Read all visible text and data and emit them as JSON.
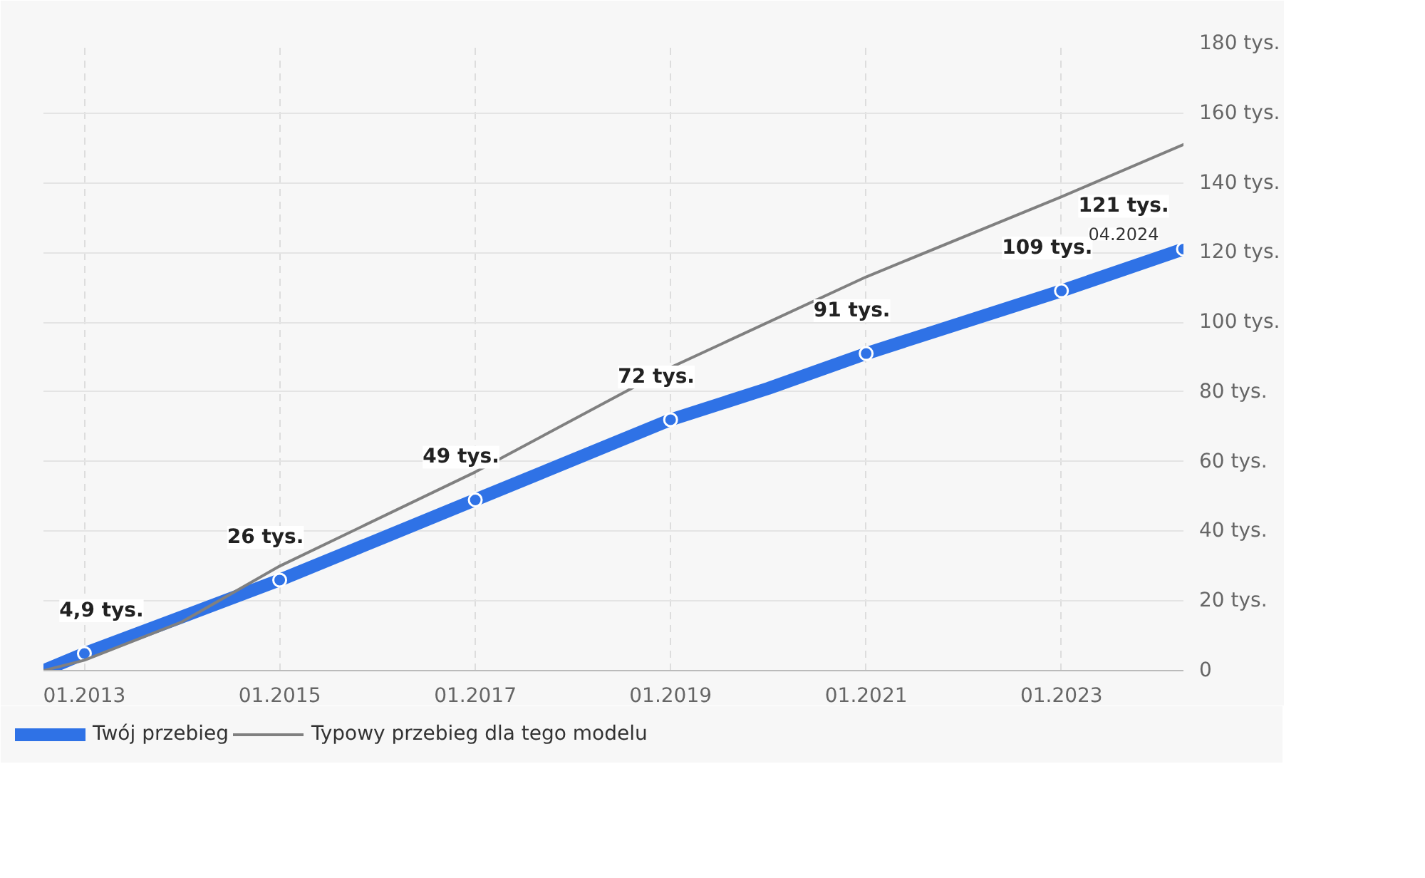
{
  "chart_data": {
    "type": "line",
    "xlim": [
      "2012-08",
      "2024-04"
    ],
    "xticks": [
      {
        "value": "2013-01",
        "label": "01.2013"
      },
      {
        "value": "2015-01",
        "label": "01.2015"
      },
      {
        "value": "2017-01",
        "label": "01.2017"
      },
      {
        "value": "2019-01",
        "label": "01.2019"
      },
      {
        "value": "2021-01",
        "label": "01.2021"
      },
      {
        "value": "2023-01",
        "label": "01.2023"
      }
    ],
    "ylim": [
      0,
      180
    ],
    "yticks": [
      {
        "value": 0,
        "label": "0"
      },
      {
        "value": 20,
        "label": "20 tys."
      },
      {
        "value": 40,
        "label": "40 tys."
      },
      {
        "value": 60,
        "label": "60 tys."
      },
      {
        "value": 80,
        "label": "80 tys."
      },
      {
        "value": 100,
        "label": "100 tys."
      },
      {
        "value": 120,
        "label": "120 tys."
      },
      {
        "value": 140,
        "label": "140 tys."
      },
      {
        "value": 160,
        "label": "160 tys."
      },
      {
        "value": 180,
        "label": "180 tys."
      }
    ],
    "grid": true,
    "legend": "bottom",
    "marker": "circle",
    "line_style": "solid",
    "series": [
      {
        "name": "Twój przebieg",
        "color": "#2f72e6",
        "x": [
          "2012-08",
          "2013-01",
          "2015-01",
          "2017-01",
          "2019-01",
          "2020-01",
          "2021-01",
          "2023-01",
          "2024-04"
        ],
        "values": [
          0,
          4.9,
          26,
          49,
          72,
          81,
          91,
          109,
          121
        ],
        "value_labels": [
          null,
          "4,9 tys.",
          "26 tys.",
          "49 tys.",
          "72 tys.",
          null,
          "91 tys.",
          "109 tys.",
          "121 tys."
        ]
      },
      {
        "name": "Typowy przebieg dla tego modelu",
        "color": "#808080",
        "type": "line",
        "marker": "none",
        "x": [
          "2012-08",
          "2013-01",
          "2014-01",
          "2015-01",
          "2017-01",
          "2019-01",
          "2021-01",
          "2023-01",
          "2024-04"
        ],
        "values": [
          0,
          3,
          14,
          30,
          57,
          87,
          113,
          136,
          151
        ]
      }
    ],
    "annotations": [
      {
        "text": "04.2024",
        "x": "2024-04",
        "y": 121
      }
    ]
  }
}
